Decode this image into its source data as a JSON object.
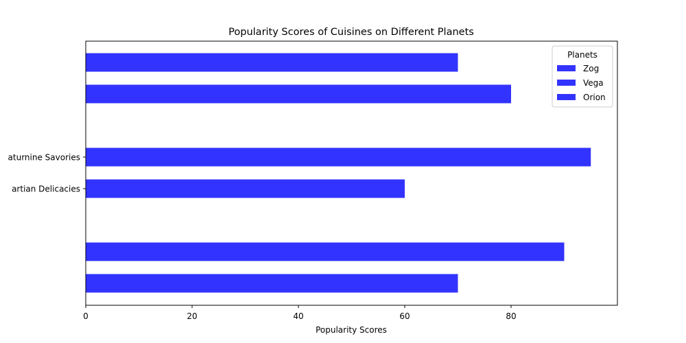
{
  "chart_data": {
    "type": "bar",
    "orientation": "horizontal",
    "title": "Popularity Scores of Cuisines on Different Planets",
    "xlabel": "Popularity Scores",
    "ylabel": "",
    "xlim": [
      0,
      100
    ],
    "xticks": [
      0,
      20,
      40,
      60,
      80
    ],
    "grid": false,
    "legend": {
      "title": "Planets",
      "position": "top-right",
      "entries": [
        "Zog",
        "Vega",
        "Orion"
      ]
    },
    "bar_color": "#3333ff",
    "categories": [
      "",
      "",
      "Saturnine Savories",
      "Martian Delicacies",
      "",
      ""
    ],
    "tick_labels": [
      {
        "category": "Saturnine Savories",
        "text": "aturnine Savories"
      },
      {
        "category": "Martian Delicacies",
        "text": "artian Delicacies"
      }
    ],
    "values": [
      70,
      80,
      95,
      60,
      90,
      70
    ]
  }
}
